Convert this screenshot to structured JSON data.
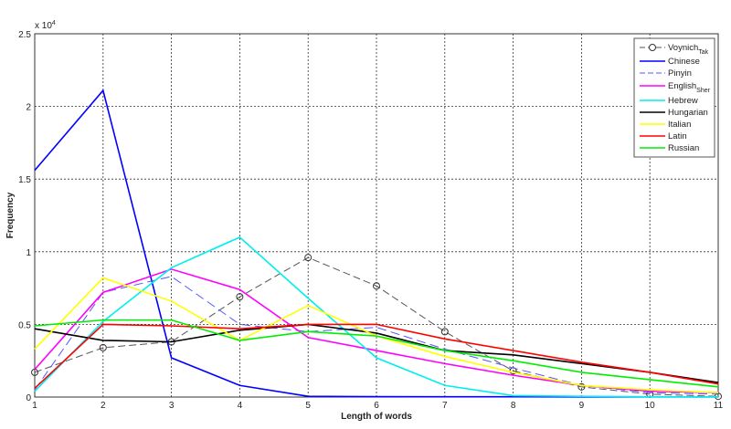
{
  "chart_data": {
    "type": "line",
    "title": "",
    "xlabel": "Length of words",
    "ylabel": "Frequency",
    "y_exponent_label": "x 10",
    "y_exponent": "4",
    "xlim": [
      1,
      11
    ],
    "ylim": [
      0,
      2.5
    ],
    "y_scale_factor": 10000,
    "grid": true,
    "legend_position": "top-right",
    "x": [
      1,
      2,
      3,
      4,
      5,
      6,
      7,
      8,
      9,
      10,
      11
    ],
    "x_ticks": [
      "1",
      "2",
      "3",
      "4",
      "5",
      "6",
      "7",
      "8",
      "9",
      "10",
      "11"
    ],
    "y_ticks": [
      "0",
      "0.5",
      "1",
      "1.5",
      "2",
      "2.5"
    ],
    "series": [
      {
        "name": "Voynich",
        "sub": "Tak",
        "color": "#555555",
        "dash": "8,4",
        "marker": "circle",
        "values": [
          0.17,
          0.34,
          0.38,
          0.69,
          0.96,
          0.765,
          0.45,
          0.18,
          0.07,
          0.02,
          0.005
        ]
      },
      {
        "name": "Chinese",
        "sub": "",
        "color": "#0000ff",
        "dash": "",
        "marker": "none",
        "values": [
          1.56,
          2.11,
          0.27,
          0.08,
          0.005,
          0.003,
          0.002,
          0.002,
          0.001,
          0.001,
          0.001
        ]
      },
      {
        "name": "Pinyin",
        "sub": "",
        "color": "#5555ff",
        "dash": "10,5",
        "marker": "none",
        "values": [
          0.05,
          0.72,
          0.83,
          0.5,
          0.45,
          0.48,
          0.33,
          0.2,
          0.08,
          0.03,
          0.02
        ]
      },
      {
        "name": "English",
        "sub": "Sher",
        "color": "#ff00ff",
        "dash": "",
        "marker": "none",
        "values": [
          0.19,
          0.72,
          0.88,
          0.74,
          0.41,
          0.32,
          0.23,
          0.15,
          0.08,
          0.04,
          0.03
        ]
      },
      {
        "name": "Hebrew",
        "sub": "",
        "color": "#00eeee",
        "dash": "",
        "marker": "none",
        "values": [
          0.04,
          0.52,
          0.89,
          1.1,
          0.68,
          0.27,
          0.08,
          0.01,
          0.005,
          0.002,
          0.001
        ]
      },
      {
        "name": "Hungarian",
        "sub": "",
        "color": "#000000",
        "dash": "",
        "marker": "none",
        "values": [
          0.47,
          0.39,
          0.38,
          0.46,
          0.5,
          0.44,
          0.32,
          0.29,
          0.23,
          0.17,
          0.1
        ]
      },
      {
        "name": "Italian",
        "sub": "",
        "color": "#ffff00",
        "dash": "",
        "marker": "none",
        "values": [
          0.33,
          0.82,
          0.66,
          0.39,
          0.63,
          0.42,
          0.28,
          0.17,
          0.08,
          0.05,
          0.03
        ]
      },
      {
        "name": "Latin",
        "sub": "",
        "color": "#ff0000",
        "dash": "",
        "marker": "none",
        "values": [
          0.06,
          0.5,
          0.49,
          0.47,
          0.5,
          0.5,
          0.4,
          0.32,
          0.24,
          0.17,
          0.09
        ]
      },
      {
        "name": "Russian",
        "sub": "",
        "color": "#00ee00",
        "dash": "",
        "marker": "none",
        "values": [
          0.49,
          0.53,
          0.53,
          0.39,
          0.45,
          0.42,
          0.32,
          0.25,
          0.17,
          0.12,
          0.07
        ]
      }
    ]
  }
}
